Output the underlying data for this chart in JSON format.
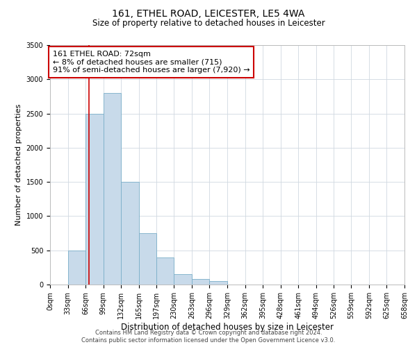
{
  "title": "161, ETHEL ROAD, LEICESTER, LE5 4WA",
  "subtitle": "Size of property relative to detached houses in Leicester",
  "xlabel": "Distribution of detached houses by size in Leicester",
  "ylabel": "Number of detached properties",
  "bin_edges": [
    0,
    33,
    66,
    99,
    132,
    165,
    197,
    230,
    263,
    296,
    329,
    362,
    395,
    428,
    461,
    494,
    526,
    559,
    592,
    625,
    658
  ],
  "bin_heights": [
    0,
    500,
    2500,
    2800,
    1500,
    750,
    400,
    155,
    80,
    50,
    0,
    0,
    0,
    0,
    0,
    0,
    0,
    0,
    0,
    0
  ],
  "bar_color": "#c8daea",
  "bar_edge_color": "#7aaec8",
  "property_line_x": 72,
  "property_line_color": "#cc0000",
  "ylim": [
    0,
    3500
  ],
  "yticks": [
    0,
    500,
    1000,
    1500,
    2000,
    2500,
    3000,
    3500
  ],
  "annotation_text": "161 ETHEL ROAD: 72sqm\n← 8% of detached houses are smaller (715)\n91% of semi-detached houses are larger (7,920) →",
  "annotation_box_color": "#ffffff",
  "annotation_box_edge_color": "#cc0000",
  "footnote1": "Contains HM Land Registry data © Crown copyright and database right 2024.",
  "footnote2": "Contains public sector information licensed under the Open Government Licence v3.0.",
  "background_color": "#ffffff",
  "grid_color": "#d0d8e0",
  "title_fontsize": 10,
  "subtitle_fontsize": 8.5,
  "ylabel_fontsize": 8,
  "xlabel_fontsize": 8.5,
  "tick_fontsize": 7,
  "annot_fontsize": 8,
  "footnote_fontsize": 6
}
